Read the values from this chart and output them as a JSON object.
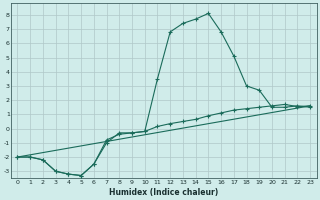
{
  "xlabel": "Humidex (Indice chaleur)",
  "bg_color": "#d0ecea",
  "grid_color": "#b0c8c8",
  "line_color": "#1a6b5a",
  "xlim": [
    -0.5,
    23.5
  ],
  "ylim": [
    -3.5,
    8.8
  ],
  "yticks": [
    -3,
    -2,
    -1,
    0,
    1,
    2,
    3,
    4,
    5,
    6,
    7,
    8
  ],
  "xticks": [
    0,
    1,
    2,
    3,
    4,
    5,
    6,
    7,
    8,
    9,
    10,
    11,
    12,
    13,
    14,
    15,
    16,
    17,
    18,
    19,
    20,
    21,
    22,
    23
  ],
  "series1_x": [
    0,
    1,
    2,
    3,
    4,
    5,
    6,
    7,
    8,
    9,
    10,
    11,
    12,
    13,
    14,
    15,
    16,
    17,
    18,
    19,
    20,
    21,
    22,
    23
  ],
  "series1_y": [
    -2.0,
    -2.0,
    -2.2,
    -3.0,
    -3.2,
    -3.3,
    -2.5,
    -1.0,
    -0.3,
    -0.3,
    -0.2,
    3.5,
    6.8,
    7.4,
    7.7,
    8.1,
    6.8,
    5.1,
    3.0,
    2.7,
    1.5,
    1.5,
    1.6,
    1.5
  ],
  "series2_x": [
    0,
    1,
    2,
    3,
    4,
    5,
    6,
    7,
    8,
    9,
    10,
    11,
    12,
    13,
    14,
    15,
    16,
    17,
    18,
    19,
    20,
    21,
    22,
    23
  ],
  "series2_y": [
    -2.0,
    -2.0,
    -2.2,
    -3.0,
    -3.2,
    -3.3,
    -2.5,
    -0.8,
    -0.4,
    -0.3,
    -0.2,
    0.15,
    0.35,
    0.5,
    0.65,
    0.9,
    1.1,
    1.3,
    1.4,
    1.5,
    1.6,
    1.7,
    1.55,
    1.6
  ],
  "series3_x": [
    0,
    23
  ],
  "series3_y": [
    -2.0,
    1.6
  ]
}
